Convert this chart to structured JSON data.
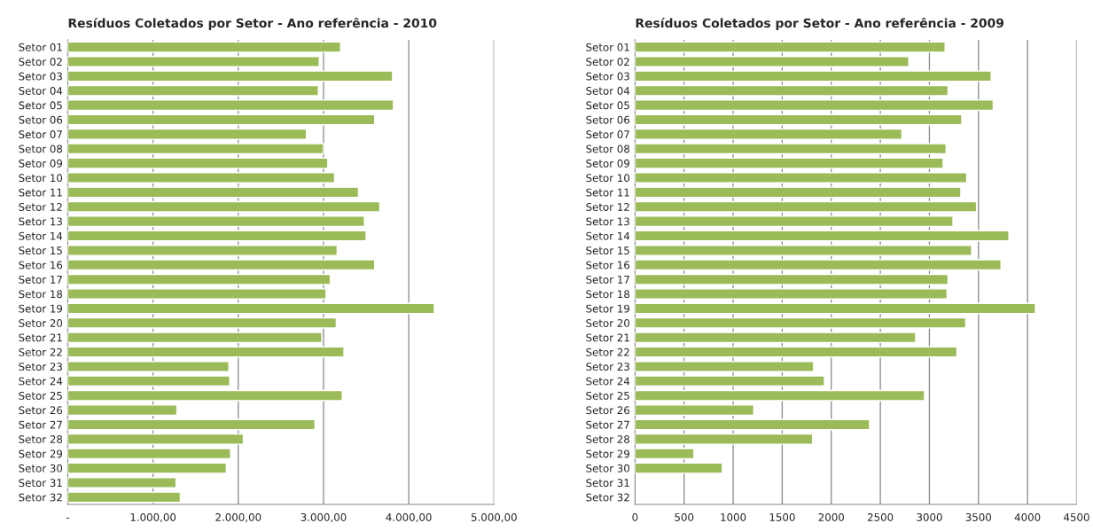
{
  "chart_data": [
    {
      "type": "bar",
      "orientation": "horizontal",
      "title": "Resíduos Coletados por Setor - Ano referência - 2010",
      "categories": [
        "Setor 01",
        "Setor 02",
        "Setor 03",
        "Setor 04",
        "Setor 05",
        "Setor 06",
        "Setor 07",
        "Setor 08",
        "Setor 09",
        "Setor 10",
        "Setor 11",
        "Setor 12",
        "Setor 13",
        "Setor 14",
        "Setor 15",
        "Setor 16",
        "Setor 17",
        "Setor 18",
        "Setor 19",
        "Setor 20",
        "Setor 21",
        "Setor 22",
        "Setor 23",
        "Setor 24",
        "Setor 25",
        "Setor 26",
        "Setor 27",
        "Setor 28",
        "Setor 29",
        "Setor 30",
        "Setor 31",
        "Setor 32"
      ],
      "values": [
        3200,
        2950,
        3810,
        2940,
        3820,
        3600,
        2800,
        3000,
        3050,
        3130,
        3410,
        3660,
        3480,
        3500,
        3160,
        3600,
        3080,
        3030,
        4300,
        3150,
        2980,
        3240,
        1890,
        1900,
        3220,
        1280,
        2900,
        2060,
        1910,
        1860,
        1270,
        1320
      ],
      "color": "#9bbb59",
      "xlim": [
        0,
        5000
      ],
      "xticks": [
        {
          "value": 0,
          "label": "-"
        },
        {
          "value": 1000,
          "label": "1.000,00"
        },
        {
          "value": 2000,
          "label": "2.000,00"
        },
        {
          "value": 3000,
          "label": "3.000,00"
        },
        {
          "value": 4000,
          "label": "4.000,00"
        },
        {
          "value": 5000,
          "label": "5.000,00"
        }
      ],
      "grid": "x",
      "legend": false
    },
    {
      "type": "bar",
      "orientation": "horizontal",
      "title": "Resíduos Coletados por Setor - Ano referência - 2009",
      "categories": [
        "Setor 01",
        "Setor 02",
        "Setor 03",
        "Setor 04",
        "Setor 05",
        "Setor 06",
        "Setor 07",
        "Setor 08",
        "Setor 09",
        "Setor 10",
        "Setor 11",
        "Setor 12",
        "Setor 13",
        "Setor 14",
        "Setor 15",
        "Setor 16",
        "Setor 17",
        "Setor 18",
        "Setor 19",
        "Setor 20",
        "Setor 21",
        "Setor 22",
        "Setor 23",
        "Setor 24",
        "Setor 25",
        "Setor 26",
        "Setor 27",
        "Setor 28",
        "Setor 29",
        "Setor 30",
        "Setor 31",
        "Setor 32"
      ],
      "values": [
        3160,
        2790,
        3630,
        3190,
        3650,
        3330,
        2720,
        3170,
        3140,
        3380,
        3320,
        3480,
        3240,
        3810,
        3430,
        3730,
        3190,
        3180,
        4080,
        3370,
        2860,
        3280,
        1820,
        1930,
        2950,
        1210,
        2390,
        1810,
        600,
        890,
        null,
        null
      ],
      "color": "#9bbb59",
      "xlim": [
        0,
        4500
      ],
      "xticks": [
        0,
        500,
        1000,
        1500,
        2000,
        2500,
        3000,
        3500,
        4000,
        4500
      ],
      "grid": "x",
      "legend": false
    }
  ]
}
